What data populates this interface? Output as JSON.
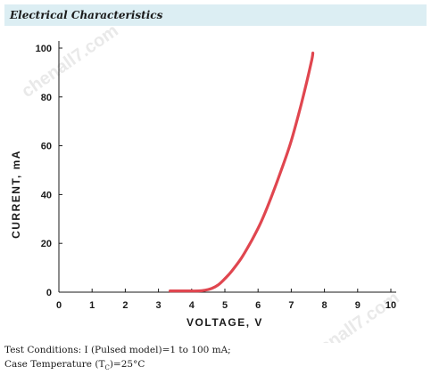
{
  "header": {
    "title": "Electrical Characteristics"
  },
  "chart_data": {
    "type": "line",
    "xlabel": "VOLTAGE, V",
    "ylabel": "CURRENT, mA",
    "xlim": [
      0,
      10
    ],
    "ylim": [
      0,
      100
    ],
    "xticks": [
      "0",
      "1",
      "2",
      "3",
      "4",
      "5",
      "6",
      "7",
      "8",
      "9",
      "10"
    ],
    "yticks": [
      "0",
      "20",
      "40",
      "60",
      "80",
      "100"
    ],
    "grid": false,
    "series": [
      {
        "color": "#e0464f",
        "x": [
          3.35,
          3.8,
          4.2,
          4.4,
          4.6,
          4.8,
          5.0,
          5.2,
          5.5,
          5.8,
          6.1,
          6.4,
          6.7,
          7.0,
          7.3,
          7.6,
          7.65
        ],
        "y": [
          0.5,
          0.5,
          0.5,
          0.8,
          1.5,
          3.0,
          5.5,
          8.5,
          14,
          21,
          29,
          39,
          50,
          62,
          77,
          94,
          98
        ]
      }
    ]
  },
  "watermark": {
    "text": "chenall7.com"
  },
  "conditions": {
    "line1": "Test Conditions: I (Pulsed model)=1 to 100 mA;",
    "line2_prefix": "Case Temperature (T",
    "line2_sub": "C",
    "line2_suffix": ")=25°C"
  }
}
